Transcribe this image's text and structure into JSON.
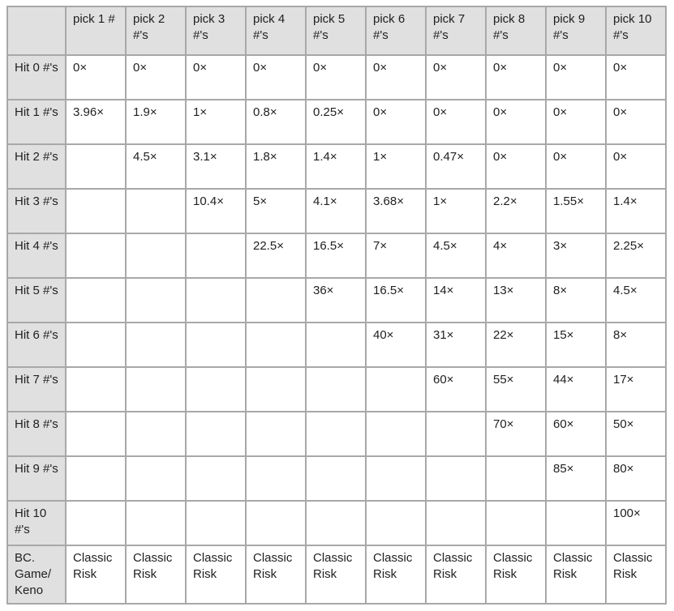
{
  "colors": {
    "background": "#ffffff",
    "header_background": "#e0e0e0",
    "border": "#a8a8a8",
    "text": "#202122"
  },
  "table": {
    "corner": "",
    "columns": [
      "pick 1 #",
      "pick 2 #'s",
      "pick 3 #'s",
      "pick 4 #'s",
      "pick 5 #'s",
      "pick 6 #'s",
      "pick 7 #'s",
      "pick 8 #'s",
      "pick 9 #'s",
      "pick 10 #'s"
    ],
    "rows": [
      {
        "label": "Hit 0 #'s",
        "cells": [
          "0×",
          "0×",
          "0×",
          "0×",
          "0×",
          "0×",
          "0×",
          "0×",
          "0×",
          "0×"
        ]
      },
      {
        "label": "Hit 1 #'s",
        "cells": [
          "3.96×",
          "1.9×",
          "1×",
          "0.8×",
          "0.25×",
          "0×",
          "0×",
          "0×",
          "0×",
          "0×"
        ]
      },
      {
        "label": "Hit 2 #'s",
        "cells": [
          "",
          "4.5×",
          "3.1×",
          "1.8×",
          "1.4×",
          "1×",
          "0.47×",
          "0×",
          "0×",
          "0×"
        ]
      },
      {
        "label": "Hit 3 #'s",
        "cells": [
          "",
          "",
          "10.4×",
          "5×",
          "4.1×",
          "3.68×",
          "1×",
          "2.2×",
          "1.55×",
          "1.4×"
        ]
      },
      {
        "label": "Hit 4 #'s",
        "cells": [
          "",
          "",
          "",
          "22.5×",
          "16.5×",
          "7×",
          "4.5×",
          "4×",
          "3×",
          "2.25×"
        ]
      },
      {
        "label": "Hit 5 #'s",
        "cells": [
          "",
          "",
          "",
          "",
          "36×",
          "16.5×",
          "14×",
          "13×",
          "8×",
          "4.5×"
        ]
      },
      {
        "label": "Hit 6 #'s",
        "cells": [
          "",
          "",
          "",
          "",
          "",
          "40×",
          "31×",
          "22×",
          "15×",
          "8×"
        ]
      },
      {
        "label": "Hit 7 #'s",
        "cells": [
          "",
          "",
          "",
          "",
          "",
          "",
          "60×",
          "55×",
          "44×",
          "17×"
        ]
      },
      {
        "label": "Hit 8 #'s",
        "cells": [
          "",
          "",
          "",
          "",
          "",
          "",
          "",
          "70×",
          "60×",
          "50×"
        ]
      },
      {
        "label": "Hit 9 #'s",
        "cells": [
          "",
          "",
          "",
          "",
          "",
          "",
          "",
          "",
          "85×",
          "80×"
        ]
      },
      {
        "label": "Hit 10 #'s",
        "cells": [
          "",
          "",
          "",
          "",
          "",
          "",
          "",
          "",
          "",
          "100×"
        ]
      },
      {
        "label": "BC. Game/ Keno",
        "cells": [
          "Classic Risk",
          "Classic Risk",
          "Classic Risk",
          "Classic Risk",
          "Classic Risk",
          "Classic Risk",
          "Classic Risk",
          "Classic Risk",
          "Classic Risk",
          "Classic Risk"
        ]
      }
    ]
  }
}
